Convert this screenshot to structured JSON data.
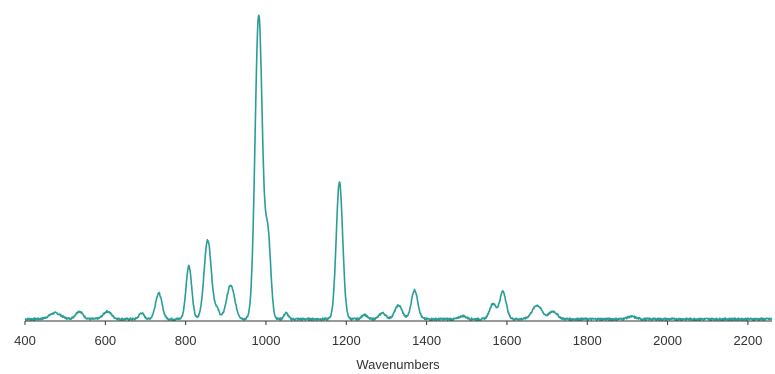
{
  "chart_data": {
    "type": "line",
    "title": "",
    "xlabel": "Wavenumbers",
    "ylabel": "",
    "xlim": [
      400,
      2260
    ],
    "ylim": [
      0,
      1
    ],
    "grid": false,
    "legend": "none",
    "x_ticks": [
      400,
      600,
      800,
      1000,
      1200,
      1400,
      1600,
      1800,
      2000,
      2200
    ],
    "x_tick_labels": [
      "400",
      "600",
      "800",
      "1000",
      "1200",
      "1400",
      "1600",
      "1800",
      "2000",
      "2200"
    ],
    "series": [
      {
        "color": "#2a9d95",
        "peaks": [
          {
            "x": 475,
            "h": 0.02,
            "w": 14
          },
          {
            "x": 535,
            "h": 0.025,
            "w": 9
          },
          {
            "x": 605,
            "h": 0.025,
            "w": 10
          },
          {
            "x": 690,
            "h": 0.02,
            "w": 6
          },
          {
            "x": 733,
            "h": 0.085,
            "w": 8
          },
          {
            "x": 808,
            "h": 0.175,
            "w": 7
          },
          {
            "x": 855,
            "h": 0.26,
            "w": 9
          },
          {
            "x": 878,
            "h": 0.03,
            "w": 6
          },
          {
            "x": 912,
            "h": 0.11,
            "w": 10
          },
          {
            "x": 982,
            "h": 1.0,
            "w": 9
          },
          {
            "x": 1005,
            "h": 0.27,
            "w": 7
          },
          {
            "x": 1050,
            "h": 0.02,
            "w": 5
          },
          {
            "x": 1183,
            "h": 0.45,
            "w": 8
          },
          {
            "x": 1245,
            "h": 0.015,
            "w": 6
          },
          {
            "x": 1290,
            "h": 0.02,
            "w": 8
          },
          {
            "x": 1330,
            "h": 0.045,
            "w": 9
          },
          {
            "x": 1370,
            "h": 0.095,
            "w": 8
          },
          {
            "x": 1490,
            "h": 0.01,
            "w": 8
          },
          {
            "x": 1565,
            "h": 0.05,
            "w": 8
          },
          {
            "x": 1590,
            "h": 0.09,
            "w": 8
          },
          {
            "x": 1675,
            "h": 0.045,
            "w": 12
          },
          {
            "x": 1715,
            "h": 0.025,
            "w": 10
          },
          {
            "x": 1910,
            "h": 0.008,
            "w": 10
          }
        ]
      }
    ]
  }
}
